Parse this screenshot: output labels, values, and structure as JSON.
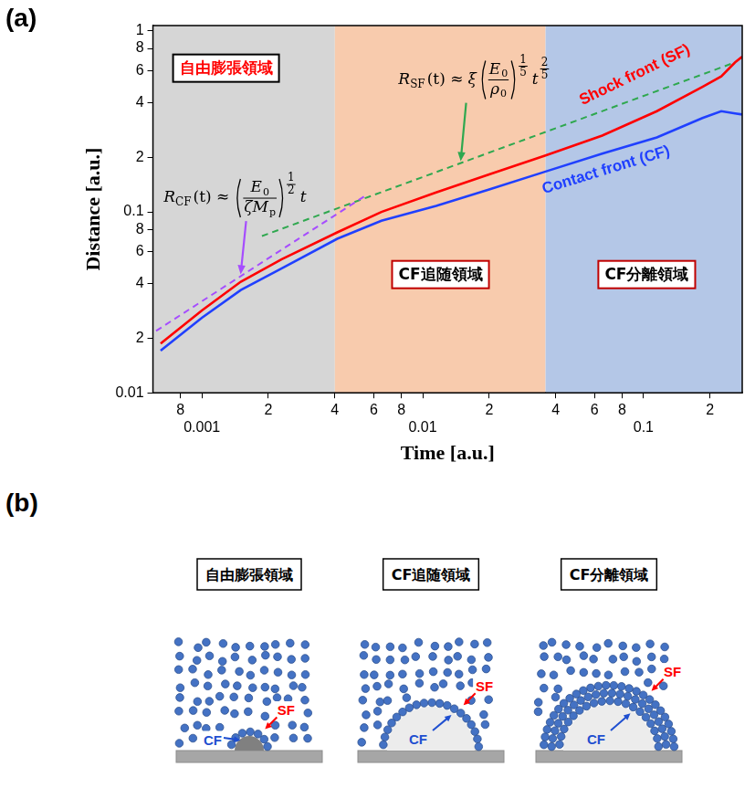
{
  "chart_data": {
    "type": "line",
    "panel_label": "(a)",
    "x_label": "Time [a.u.]",
    "y_label": "Distance [a.u.]",
    "log": true,
    "grid": false,
    "xlim": [
      0.0006,
      0.28
    ],
    "ylim": [
      0.01,
      1.07
    ],
    "xticks": [
      {
        "value": 0.0008,
        "label": "8"
      },
      0.001,
      {
        "value": 0.002,
        "label": "2"
      },
      {
        "value": 0.004,
        "label": "4"
      },
      {
        "value": 0.006,
        "label": "6"
      },
      {
        "value": 0.008,
        "label": "8"
      },
      0.01,
      {
        "value": 0.02,
        "label": "2"
      },
      {
        "value": 0.04,
        "label": "4"
      },
      {
        "value": 0.06,
        "label": "6"
      },
      {
        "value": 0.08,
        "label": "8"
      },
      0.1,
      {
        "value": 0.2,
        "label": "2"
      }
    ],
    "yticks": [
      0.01,
      {
        "value": 0.02,
        "label": "2"
      },
      {
        "value": 0.04,
        "label": "4"
      },
      {
        "value": 0.06,
        "label": "6"
      },
      {
        "value": 0.08,
        "label": "8"
      },
      0.1,
      {
        "value": 0.2,
        "label": "2"
      },
      {
        "value": 0.4,
        "label": "4"
      },
      {
        "value": 0.6,
        "label": "6"
      },
      {
        "value": 0.8,
        "label": "8"
      },
      1
    ],
    "series": [
      {
        "name": "Shock front (SF)",
        "color": "#ff0000",
        "line_style": "solid",
        "x": [
          0.00065,
          0.001,
          0.0015,
          0.0023,
          0.0041,
          0.0065,
          0.0115,
          0.02,
          0.036,
          0.065,
          0.115,
          0.185,
          0.225,
          0.26,
          0.28
        ],
        "values": [
          0.0187,
          0.0285,
          0.0411,
          0.0547,
          0.077,
          0.0999,
          0.128,
          0.161,
          0.205,
          0.264,
          0.36,
          0.49,
          0.56,
          0.67,
          0.72
        ]
      },
      {
        "name": "Contact front (CF)",
        "color": "#2040ff",
        "line_style": "solid",
        "x": [
          0.00065,
          0.001,
          0.0015,
          0.0023,
          0.0041,
          0.0065,
          0.0115,
          0.02,
          0.036,
          0.065,
          0.115,
          0.185,
          0.225,
          0.26,
          0.28
        ],
        "values": [
          0.0171,
          0.026,
          0.037,
          0.0487,
          0.071,
          0.0892,
          0.108,
          0.133,
          0.167,
          0.21,
          0.258,
          0.33,
          0.36,
          0.35,
          0.345
        ]
      },
      {
        "color": "#a64dff",
        "line_style": "dashed",
        "x": [
          0.00062,
          0.00562
        ],
        "values": [
          0.022,
          0.125
        ],
        "formula": {
          "lhs": "R",
          "lhs_sub": "CF",
          "relation": "(t) ≈",
          "numerator": [
            "E",
            "0"
          ],
          "denominator": [
            "ζM",
            "p"
          ],
          "power": [
            "1",
            "2"
          ],
          "tail": "t"
        }
      },
      {
        "color": "#2fa84f",
        "line_style": "dashed",
        "x": [
          0.00187,
          0.26
        ],
        "values": [
          0.0735,
          0.67
        ],
        "formula": {
          "lhs": "R",
          "lhs_sub": "SF",
          "relation": "(t) ≈",
          "factor": "ξ",
          "numerator": [
            "E",
            "0"
          ],
          "denominator": [
            "ρ",
            "0"
          ],
          "power": [
            "1",
            "5"
          ],
          "tail": "t",
          "tail_power": [
            "2",
            "5"
          ]
        }
      }
    ],
    "regions": [
      {
        "label": "自由膨張領域",
        "from": 0.0006,
        "to": 0.004,
        "color": "#d6d6d6"
      },
      {
        "label": "CF追随領域",
        "from": 0.004,
        "to": 0.036,
        "color": "#f8cbad"
      },
      {
        "label": "CF分離領域",
        "from": 0.036,
        "to": 0.28,
        "color": "#b4c7e7"
      }
    ]
  },
  "diagram_b": {
    "panel_label": "(b)",
    "diagrams": [
      {
        "title": "自由膨張領域",
        "shock_label": "SF",
        "contact_label": "CF"
      },
      {
        "title": "CF追随領域",
        "shock_label": "SF",
        "contact_label": "CF"
      },
      {
        "title": "CF分離領域",
        "shock_label": "SF",
        "contact_label": "CF"
      }
    ]
  }
}
